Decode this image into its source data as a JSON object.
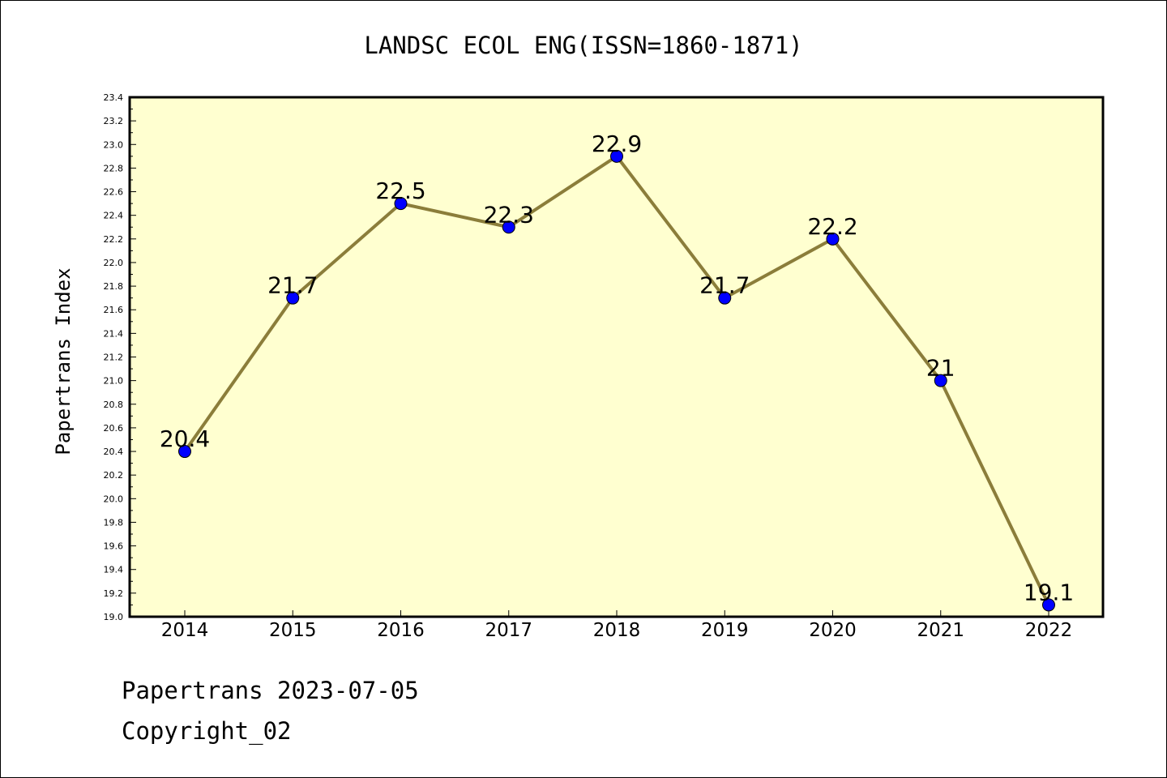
{
  "chart_data": {
    "type": "line",
    "title": "LANDSC ECOL ENG(ISSN=1860-1871)",
    "xlabel": "",
    "ylabel": "Papertrans Index",
    "categories": [
      "2014",
      "2015",
      "2016",
      "2017",
      "2018",
      "2019",
      "2020",
      "2021",
      "2022"
    ],
    "values": [
      20.4,
      21.7,
      22.5,
      22.3,
      22.9,
      21.7,
      22.2,
      21.0,
      19.1
    ],
    "data_labels": [
      "20.4",
      "21.7",
      "22.5",
      "22.3",
      "22.9",
      "21.7",
      "22.2",
      "21",
      "19.1"
    ],
    "ylim": [
      19.0,
      23.4
    ],
    "yticks": [
      "19.0",
      "19.2",
      "19.4",
      "19.6",
      "19.8",
      "20.0",
      "20.2",
      "20.4",
      "20.6",
      "20.8",
      "21.0",
      "21.2",
      "21.4",
      "21.6",
      "21.8",
      "22.0",
      "22.2",
      "22.4",
      "22.6",
      "22.8",
      "23.0",
      "23.2",
      "23.4"
    ],
    "grid": false,
    "colors": {
      "plot_background": "#ffffd0",
      "line": "#8b7d3a",
      "marker": "#0000ff"
    }
  },
  "footer": {
    "line1": "Papertrans 2023-07-05",
    "line2": "Copyright_02"
  }
}
